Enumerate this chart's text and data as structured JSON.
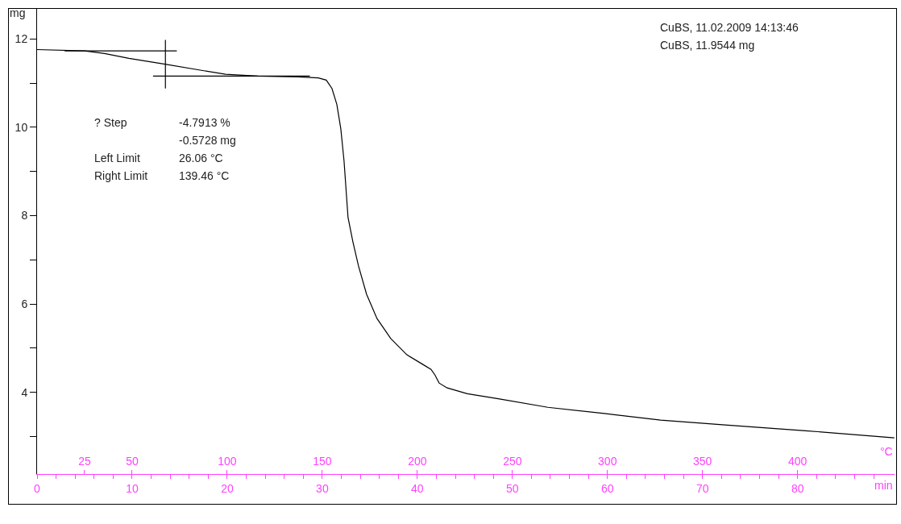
{
  "chart_data": {
    "type": "line",
    "xlabel": "min",
    "x2label": "°C",
    "ylabel": "mg",
    "annotations": [
      "CuBS, 11.02.2009 14:13:46",
      "CuBS, 11.9544 mg",
      "? Step",
      "-4.7913 %",
      "-0.5728 mg",
      "Left Limit",
      "26.06 °C",
      "Right Limit",
      "139.46 °C"
    ],
    "series": [
      {
        "color": "#000000",
        "x": [
          0,
          5.0,
          7.1,
          9.66,
          13.47,
          17.29,
          19.83,
          23.22,
          27.46,
          29.58,
          30.42,
          31.02,
          31.53,
          31.95,
          32.29,
          32.71,
          33.22,
          33.81,
          34.66,
          35.76,
          37.2,
          38.9,
          40.59,
          41.44,
          41.86,
          42.29,
          43.14,
          45.25,
          48.64,
          53.73,
          59.66,
          65.59,
          72.37,
          80.85,
          90.17
        ],
        "values": [
          11.76,
          11.73,
          11.67,
          11.56,
          11.43,
          11.29,
          11.2,
          11.16,
          11.14,
          11.12,
          11.07,
          10.88,
          10.52,
          9.97,
          9.24,
          7.96,
          7.41,
          6.86,
          6.22,
          5.67,
          5.22,
          4.85,
          4.63,
          4.52,
          4.39,
          4.21,
          4.1,
          3.97,
          3.85,
          3.66,
          3.52,
          3.37,
          3.26,
          3.13,
          2.97
        ]
      },
      {
        "color": "#000000",
        "x": [
          2.9,
          14.7
        ],
        "values": [
          11.73,
          11.73
        ]
      },
      {
        "color": "#000000",
        "x": [
          12.2,
          28.7
        ],
        "values": [
          11.16,
          11.16
        ]
      },
      {
        "color": "#000000",
        "x": [
          13.5,
          13.5
        ],
        "values": [
          11.98,
          10.88
        ]
      }
    ],
    "xlim": [
      0,
      90.2
    ],
    "xticks": [
      0,
      {
        "value": 2,
        "label": null
      },
      {
        "value": 4,
        "label": null
      },
      {
        "value": 6,
        "label": null
      },
      {
        "value": 8,
        "label": null
      },
      10,
      {
        "value": 12,
        "label": null
      },
      {
        "value": 14,
        "label": null
      },
      {
        "value": 16,
        "label": null
      },
      {
        "value": 18,
        "label": null
      },
      20,
      {
        "value": 22,
        "label": null
      },
      {
        "value": 24,
        "label": null
      },
      {
        "value": 26,
        "label": null
      },
      {
        "value": 28,
        "label": null
      },
      30,
      {
        "value": 32,
        "label": null
      },
      {
        "value": 34,
        "label": null
      },
      {
        "value": 36,
        "label": null
      },
      {
        "value": 38,
        "label": null
      },
      40,
      {
        "value": 42,
        "label": null
      },
      {
        "value": 44,
        "label": null
      },
      {
        "value": 46,
        "label": null
      },
      {
        "value": 48,
        "label": null
      },
      50,
      {
        "value": 52,
        "label": null
      },
      {
        "value": 54,
        "label": null
      },
      {
        "value": 56,
        "label": null
      },
      {
        "value": 58,
        "label": null
      },
      60,
      {
        "value": 62,
        "label": null
      },
      {
        "value": 64,
        "label": null
      },
      {
        "value": 66,
        "label": null
      },
      {
        "value": 68,
        "label": null
      },
      70,
      {
        "value": 72,
        "label": null
      },
      {
        "value": 74,
        "label": null
      },
      {
        "value": 76,
        "label": null
      },
      {
        "value": 78,
        "label": null
      },
      80,
      {
        "value": 82,
        "label": null
      },
      {
        "value": 84,
        "label": null
      },
      {
        "value": 86,
        "label": null
      },
      {
        "value": 88,
        "label": null
      }
    ],
    "x2lim": [
      0,
      451
    ],
    "x2ticks": [
      25,
      50,
      100,
      150,
      200,
      250,
      300,
      350,
      400
    ],
    "ylim": [
      2.15,
      12.7
    ],
    "yticks": [
      {
        "value": 3,
        "label": null
      },
      4,
      {
        "value": 5,
        "label": null
      },
      6,
      {
        "value": 7,
        "label": null
      },
      8,
      {
        "value": 9,
        "label": null
      },
      10,
      {
        "value": 11,
        "label": null
      },
      12
    ],
    "grid": false,
    "marker": "none",
    "line_style": "solid"
  }
}
